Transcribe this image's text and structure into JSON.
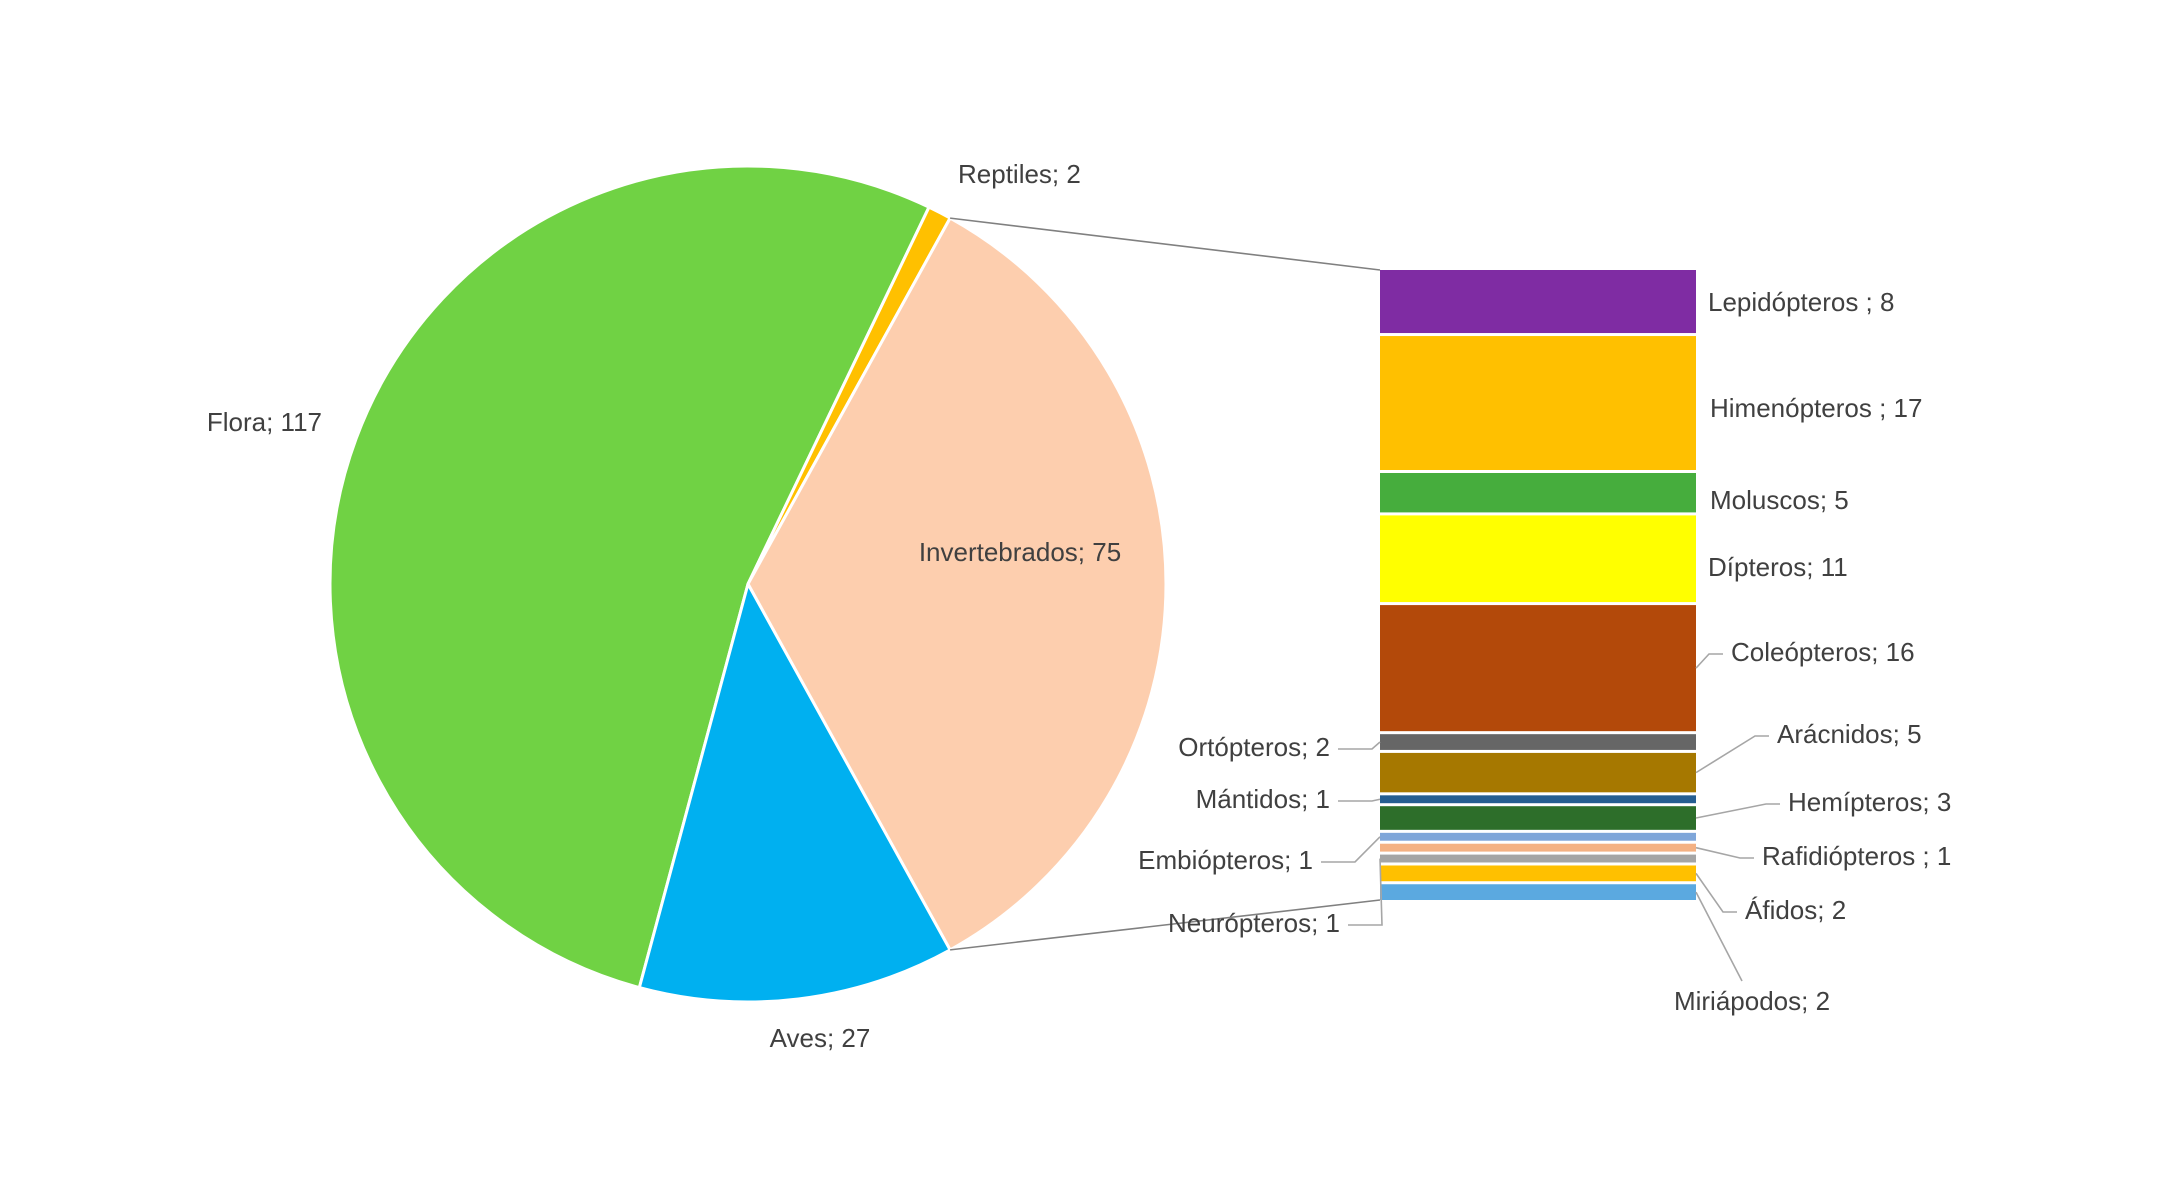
{
  "chart_data": {
    "type": "pie-of-bar",
    "pie": {
      "slices": [
        {
          "name": "Flora",
          "value": 117,
          "label": "Flora; 117",
          "color": "#70d244"
        },
        {
          "name": "Reptiles",
          "value": 2,
          "label": "Reptiles; 2",
          "color": "#ffc000"
        },
        {
          "name": "Invertebrados",
          "value": 75,
          "label": "Invertebrados; 75",
          "color": "#fdceae"
        },
        {
          "name": "Aves",
          "value": 27,
          "label": "Aves; 27",
          "color": "#00b0f0"
        }
      ],
      "breakout_slice": "Invertebrados"
    },
    "bar": {
      "segments": [
        {
          "name": "Lepidópteros",
          "value": 8,
          "label": "Lepidópteros ; 8",
          "color": "#7f2ca3"
        },
        {
          "name": "Himenópteros",
          "value": 17,
          "label": "Himenópteros ; 17",
          "color": "#ffc000"
        },
        {
          "name": "Moluscos",
          "value": 5,
          "label": "Moluscos; 5",
          "color": "#46ad3d"
        },
        {
          "name": "Dípteros",
          "value": 11,
          "label": "Dípteros; 11",
          "color": "#ffff00"
        },
        {
          "name": "Coleópteros",
          "value": 16,
          "label": "Coleópteros; 16",
          "color": "#b3490a"
        },
        {
          "name": "Ortópteros",
          "value": 2,
          "label": "Ortópteros; 2",
          "color": "#666666"
        },
        {
          "name": "Arácnidos",
          "value": 5,
          "label": "Arácnidos; 5",
          "color": "#a67800"
        },
        {
          "name": "Mántidos",
          "value": 1,
          "label": "Mántidos; 1",
          "color": "#255e91"
        },
        {
          "name": "Hemípteros",
          "value": 3,
          "label": "Hemípteros; 3",
          "color": "#2d6e2a"
        },
        {
          "name": "Embiópteros",
          "value": 1,
          "label": "Embiópteros; 1",
          "color": "#7fa6d9"
        },
        {
          "name": "Rafidiópteros",
          "value": 1,
          "label": "Rafidiópteros ; 1",
          "color": "#f4b183"
        },
        {
          "name": "Neurópteros",
          "value": 1,
          "label": "Neurópteros; 1",
          "color": "#a5a5a5"
        },
        {
          "name": "Áfidos",
          "value": 2,
          "label": "Áfidos; 2",
          "color": "#ffc000"
        },
        {
          "name": "Miriápodos",
          "value": 2,
          "label": "Miriápodos; 2",
          "color": "#5ba9e0"
        }
      ]
    },
    "title": "",
    "legend": "none"
  }
}
